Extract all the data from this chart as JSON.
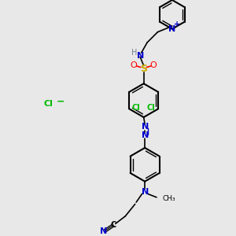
{
  "bg_color": "#e8e8e8",
  "bond_color": "#000000",
  "N_color": "#0000cd",
  "O_color": "#ff0000",
  "S_color": "#ccaa00",
  "Cl_color": "#00bb00",
  "H_color": "#708090",
  "figsize": [
    3.0,
    3.0
  ],
  "dpi": 100,
  "xlim": [
    0,
    10
  ],
  "ylim": [
    0,
    10
  ]
}
